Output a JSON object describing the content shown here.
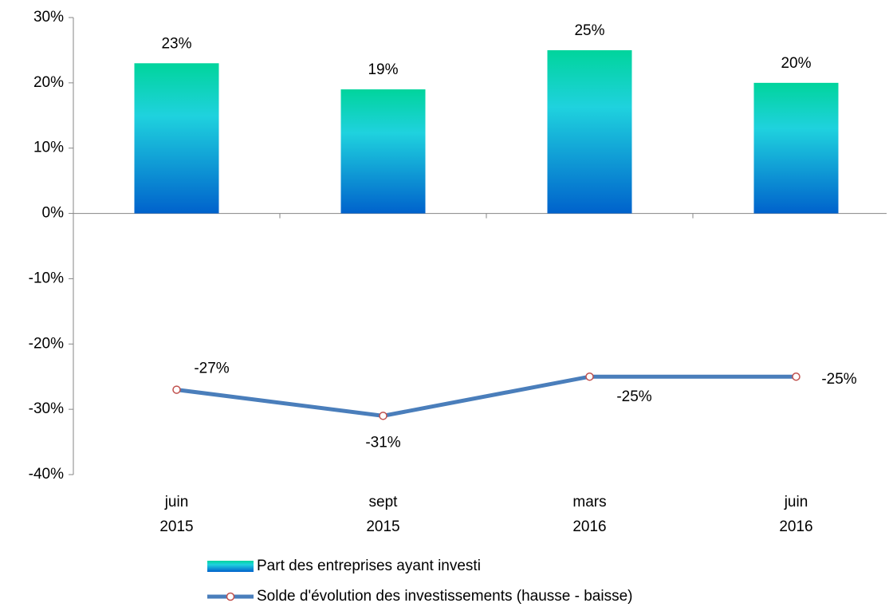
{
  "chart_data": {
    "type": "bar+line",
    "categories": [
      "juin 2015",
      "sept 2015",
      "mars 2016",
      "juin 2016"
    ],
    "series": [
      {
        "name": "Part des entreprises ayant investi",
        "type": "bar",
        "color": "#1fd2de",
        "values": [
          23,
          19,
          25,
          20
        ],
        "value_labels": [
          "23%",
          "19%",
          "25%",
          "20%"
        ]
      },
      {
        "name": "Solde d'évolution des investissements (hausse - baisse)",
        "type": "line",
        "color": "#4a7ebb",
        "values": [
          -27,
          -31,
          -25,
          -25
        ],
        "value_labels": [
          "-27%",
          "-31%",
          "-25%",
          "-25%"
        ]
      }
    ],
    "ylim": [
      -40,
      30
    ],
    "yticks": [
      {
        "value": -40,
        "label": "-40%"
      },
      {
        "value": -30,
        "label": "-30%"
      },
      {
        "value": -20,
        "label": "-20%"
      },
      {
        "value": -10,
        "label": "-10%"
      },
      {
        "value": 0,
        "label": "0%"
      },
      {
        "value": 10,
        "label": "10%"
      },
      {
        "value": 20,
        "label": "20%"
      },
      {
        "value": 30,
        "label": "30%"
      }
    ],
    "grid": false
  }
}
